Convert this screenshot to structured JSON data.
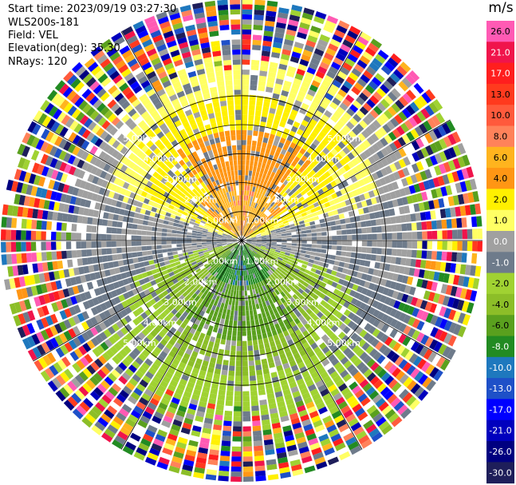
{
  "header": {
    "start_time": "Start time: 2023/09/19 03:27:30",
    "instrument": "WLS200s-181",
    "field": "Field: VEL",
    "elevation": "Elevation(deg): 35.30",
    "nrays": "NRays: 120"
  },
  "colorbar": {
    "unit": "m/s",
    "labels": [
      "26.0",
      "21.0",
      "17.0",
      "13.0",
      "10.0",
      "8.0",
      "6.0",
      "4.0",
      "2.0",
      "1.0",
      "0.0",
      "-1.0",
      "-2.0",
      "-4.0",
      "-6.0",
      "-8.0",
      "-10.0",
      "-13.0",
      "-17.0",
      "-21.0",
      "-26.0",
      "-30.0"
    ],
    "colors": [
      "#ff5ab4",
      "#f0144b",
      "#ff1e1e",
      "#ff3a1e",
      "#ff5a3c",
      "#ff825a",
      "#ffb41e",
      "#ff9614",
      "#fff000",
      "#ffff64",
      "#a0a0a0",
      "#6e7b8b",
      "#a0d232",
      "#8cbe28",
      "#5aa01e",
      "#228b22",
      "#1e78be",
      "#1e50c8",
      "#0000ff",
      "#0000be",
      "#000080",
      "#1e1e5a"
    ]
  },
  "chart_data": {
    "type": "heatmap",
    "projection": "polar PPI",
    "field": "VEL",
    "units": "m/s",
    "nrays": 120,
    "elevation_deg": 35.3,
    "range_ring_labels": [
      "1.00km",
      "2.00km",
      "3.00km",
      "4.00km",
      "5.00km"
    ],
    "range_rings_km": [
      1,
      2,
      3,
      4,
      5
    ],
    "max_range_km": 5,
    "color_scale_min": -30.0,
    "color_scale_max": 26.0,
    "pattern": {
      "north_sector_velocity_ms": [
        2.0,
        6.0
      ],
      "north_core_velocity_ms": 8.0,
      "south_sector_velocity_ms": [
        -6.0,
        -2.0
      ],
      "south_core_velocity_ms": -8.0,
      "east_west_velocity_ms": 0.0,
      "outer_ring_noise_km": 3.6
    }
  }
}
